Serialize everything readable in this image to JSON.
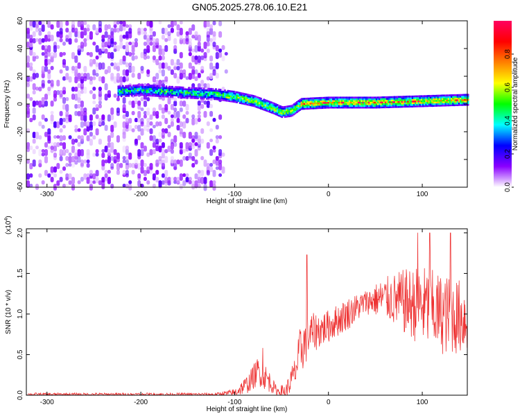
{
  "title": "GN05.2025.278.06.10.E21",
  "chart_data": [
    {
      "type": "heatmap",
      "name": "spectrogram",
      "xlabel": "Height of straight line (km)",
      "ylabel": "Frequency (Hz)",
      "xlim": [
        -322,
        148
      ],
      "ylim": [
        -60,
        60
      ],
      "x_ticks": [
        -300,
        -200,
        -100,
        0,
        100
      ],
      "y_ticks": [
        60,
        40,
        20,
        0,
        -20,
        -40,
        -60
      ],
      "colorbar": {
        "label": "Normalized spectral amplitude",
        "range": [
          0.0,
          1.0
        ],
        "ticks": [
          "0.0",
          "0.2",
          "0.4",
          "0.6",
          "0.8"
        ],
        "colors": [
          "#ffffff",
          "#8a00ff",
          "#0000ff",
          "#00ffff",
          "#00ff00",
          "#ffff00",
          "#ff8000",
          "#ff0000",
          "#ff0060"
        ]
      },
      "ridge": {
        "x": [
          -225,
          -200,
          -150,
          -120,
          -100,
          -80,
          -60,
          -50,
          -40,
          -30,
          0,
          50,
          100,
          148
        ],
        "y": [
          9,
          10,
          8,
          7,
          5,
          2,
          -3,
          -6,
          -5,
          0,
          1,
          1,
          2,
          3
        ]
      },
      "noise_region_x": [
        -322,
        -130
      ]
    },
    {
      "type": "line",
      "name": "snr",
      "xlabel": "Height of straight line (km)",
      "ylabel": "SNR (10 * v/v)",
      "y_multiplier": "(x10^4)",
      "y_multiplier_base": "(x10",
      "y_multiplier_exp": "4",
      "xlim": [
        -322,
        148
      ],
      "ylim": [
        0,
        2.05
      ],
      "x_ticks": [
        -300,
        -200,
        -100,
        0,
        100
      ],
      "y_ticks": [
        "0.0",
        "0.5",
        "1.0",
        "1.5",
        "2.0"
      ],
      "color": "#ee3333",
      "envelope": {
        "x": [
          -322,
          -120,
          -100,
          -85,
          -75,
          -65,
          -55,
          -45,
          -35,
          -30,
          -25,
          -20,
          0,
          20,
          40,
          60,
          80,
          100,
          120,
          148
        ],
        "base": [
          0.01,
          0.01,
          0.03,
          0.15,
          0.3,
          0.2,
          0.05,
          0.05,
          0.3,
          0.55,
          0.65,
          0.75,
          0.85,
          1.0,
          1.15,
          1.2,
          1.15,
          1.1,
          1.0,
          0.95
        ],
        "amp": [
          0.02,
          0.02,
          0.05,
          0.12,
          0.18,
          0.15,
          0.05,
          0.1,
          0.2,
          0.3,
          0.3,
          0.25,
          0.2,
          0.2,
          0.15,
          0.25,
          0.4,
          0.5,
          0.5,
          0.45
        ]
      },
      "spikes": [
        {
          "x": -23,
          "y": 1.73
        },
        {
          "x": -70,
          "y": 0.58
        },
        {
          "x": 95,
          "y": 2.0
        },
        {
          "x": 108,
          "y": 2.0
        },
        {
          "x": 130,
          "y": 2.0
        }
      ]
    }
  ]
}
